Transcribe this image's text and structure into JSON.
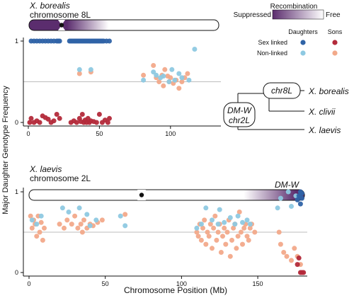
{
  "colors": {
    "sex_daughters": "#2f63a6",
    "nonlinked_daughters": "#8ec9e2",
    "nonlinked_sons": "#f2a98a",
    "sex_sons": "#b32a3a",
    "recomb_suppressed": "#5b2d6e",
    "recomb_free": "#ffffff",
    "reference_line": "#bdbdbd"
  },
  "legend": {
    "recomb_title": "Recombination",
    "recomb_suppressed": "Suppressed",
    "recomb_free": "Free",
    "col_daughters": "Daughters",
    "col_sons": "Sons",
    "row_sex": "Sex linked",
    "row_nonlinked": "Non-linked"
  },
  "tree": {
    "node_inner": "chr8L",
    "node_root_line1": "DM-W",
    "node_root_line2": "chr2L",
    "tip1": "X. borealis",
    "tip2": "X. clivii",
    "tip3": "X. laevis"
  },
  "shared_labels": {
    "xlabel": "Chromosome Position (Mb)",
    "ylabel": "Major Daughter Genotype Frequency"
  },
  "chart_data": [
    {
      "type": "scatter",
      "species": "X. borealis",
      "chromosome": "chromosome 8L",
      "xlim": [
        0,
        125
      ],
      "ylim": [
        0,
        1
      ],
      "xticks": [
        0,
        50,
        100
      ],
      "yticks": [
        0,
        1
      ],
      "reference_y": 0.5,
      "centromere_mb": 23,
      "recomb_suppressed_mb": [
        0,
        60
      ],
      "series": [
        {
          "key": "sex_daughters",
          "x": [
            2,
            4,
            6,
            8,
            10,
            12,
            14,
            16,
            18,
            20,
            21,
            22,
            29,
            30,
            31,
            32,
            33,
            34,
            35,
            36,
            37,
            38,
            39,
            40,
            41,
            42,
            43,
            44,
            45,
            46,
            47,
            48,
            49,
            50,
            51,
            52,
            53,
            55,
            57
          ],
          "y": [
            1,
            1,
            1,
            1,
            1,
            1,
            1,
            1,
            1,
            1,
            1,
            1,
            1,
            1,
            1,
            1,
            1,
            1,
            1,
            1,
            1,
            1,
            1,
            1,
            1,
            1,
            1,
            1,
            1,
            1,
            1,
            1,
            1,
            1,
            1,
            1,
            1,
            1,
            1
          ]
        },
        {
          "key": "sex_sons",
          "x": [
            1,
            2,
            4,
            6,
            8,
            10,
            12,
            14,
            16,
            18,
            20,
            22,
            30,
            32,
            34,
            36,
            37,
            38,
            39,
            40,
            41,
            42,
            43,
            44,
            46,
            48,
            50,
            52,
            54,
            56,
            57
          ],
          "y": [
            0,
            0.05,
            0,
            0.02,
            0,
            0.08,
            0.06,
            0.04,
            0,
            0.02,
            0.1,
            0.05,
            0,
            0.02,
            0,
            0.05,
            0.01,
            0.1,
            0,
            0.03,
            0,
            0.05,
            0,
            0.02,
            0.01,
            0,
            0.1,
            0,
            0.03,
            0,
            0.05
          ]
        },
        {
          "key": "nonlinked_daughters",
          "x": [
            36,
            44,
            81,
            88,
            90,
            93,
            95,
            99,
            101,
            103,
            106,
            108,
            113,
            117
          ],
          "y": [
            0.65,
            0.65,
            0.52,
            0.62,
            0.58,
            0.55,
            0.57,
            0.5,
            0.65,
            0.52,
            0.6,
            0.55,
            0.52,
            0.9
          ]
        },
        {
          "key": "nonlinked_sons",
          "x": [
            36,
            44,
            81,
            88,
            90,
            92,
            94,
            95,
            96,
            98,
            99,
            100,
            102,
            104,
            106,
            108,
            110,
            112
          ],
          "y": [
            0.6,
            0.62,
            0.58,
            0.7,
            0.55,
            0.5,
            0.58,
            0.45,
            0.65,
            0.57,
            0.5,
            0.55,
            0.48,
            0.52,
            0.42,
            0.5,
            0.55,
            0.6
          ]
        }
      ]
    },
    {
      "type": "scatter",
      "species": "X. laevis",
      "chromosome": "chromosome 2L",
      "region_label": "DM-W",
      "xlim": [
        0,
        182
      ],
      "ylim": [
        0,
        1
      ],
      "xticks": [
        0,
        50,
        100,
        150
      ],
      "yticks": [
        0,
        1
      ],
      "reference_y": 0.5,
      "centromere_mb": 73,
      "recomb_suppressed_mb": [
        165,
        182
      ],
      "series": [
        {
          "key": "sex_daughters",
          "x": [
            176,
            177,
            178,
            178,
            179,
            179
          ],
          "y": [
            0.9,
            0.95,
            1,
            0.85,
            0.98,
            0.92
          ]
        },
        {
          "key": "sex_sons",
          "x": [
            176,
            177,
            178,
            179,
            180
          ],
          "y": [
            0.1,
            0.18,
            0.0,
            0.0,
            0.0
          ]
        },
        {
          "key": "nonlinked_daughters",
          "x": [
            2,
            5,
            8,
            22,
            26,
            33,
            38,
            40,
            44,
            60,
            63,
            110,
            113,
            116,
            120,
            124,
            125,
            128,
            132,
            135,
            137,
            140,
            143,
            145,
            163,
            165,
            170,
            172,
            175
          ],
          "y": [
            0.65,
            0.6,
            0.7,
            0.8,
            0.75,
            0.8,
            0.72,
            0.58,
            0.65,
            0.7,
            0.58,
            0.55,
            0.6,
            0.8,
            0.65,
            0.6,
            0.78,
            0.62,
            0.68,
            0.6,
            0.7,
            0.62,
            0.65,
            0.6,
            0.8,
            0.92,
            1.0,
            0.82,
            0.95
          ]
        },
        {
          "key": "nonlinked_sons",
          "x": [
            1,
            2,
            3,
            4,
            5,
            6,
            7,
            8,
            9,
            10,
            20,
            23,
            25,
            28,
            30,
            32,
            34,
            35,
            36,
            38,
            40,
            42,
            45,
            48,
            63,
            110,
            111,
            112,
            113,
            114,
            115,
            116,
            117,
            118,
            119,
            120,
            121,
            122,
            123,
            124,
            125,
            126,
            127,
            128,
            129,
            130,
            131,
            132,
            133,
            134,
            135,
            136,
            137,
            138,
            139,
            140,
            141,
            142,
            143,
            144,
            145,
            146,
            148,
            164,
            165,
            167,
            169,
            172,
            174,
            176,
            178
          ],
          "y": [
            0.7,
            0.55,
            0.65,
            0.6,
            0.45,
            0.7,
            0.5,
            0.62,
            0.4,
            0.55,
            0.6,
            0.55,
            0.65,
            0.6,
            0.7,
            0.55,
            0.6,
            0.5,
            0.65,
            0.55,
            0.6,
            0.58,
            0.62,
            0.65,
            0.72,
            0.5,
            0.45,
            0.6,
            0.4,
            0.55,
            0.65,
            0.35,
            0.5,
            0.45,
            0.6,
            0.3,
            0.55,
            0.7,
            0.4,
            0.5,
            0.6,
            0.25,
            0.45,
            0.55,
            0.35,
            0.5,
            0.65,
            0.2,
            0.4,
            0.55,
            0.6,
            0.3,
            0.45,
            0.75,
            0.5,
            0.35,
            0.55,
            0.6,
            0.45,
            0.4,
            0.55,
            0.6,
            0.5,
            0.5,
            0.35,
            0.25,
            0.2,
            0.15,
            0.3,
            0.2,
            0.1
          ]
        }
      ]
    }
  ]
}
